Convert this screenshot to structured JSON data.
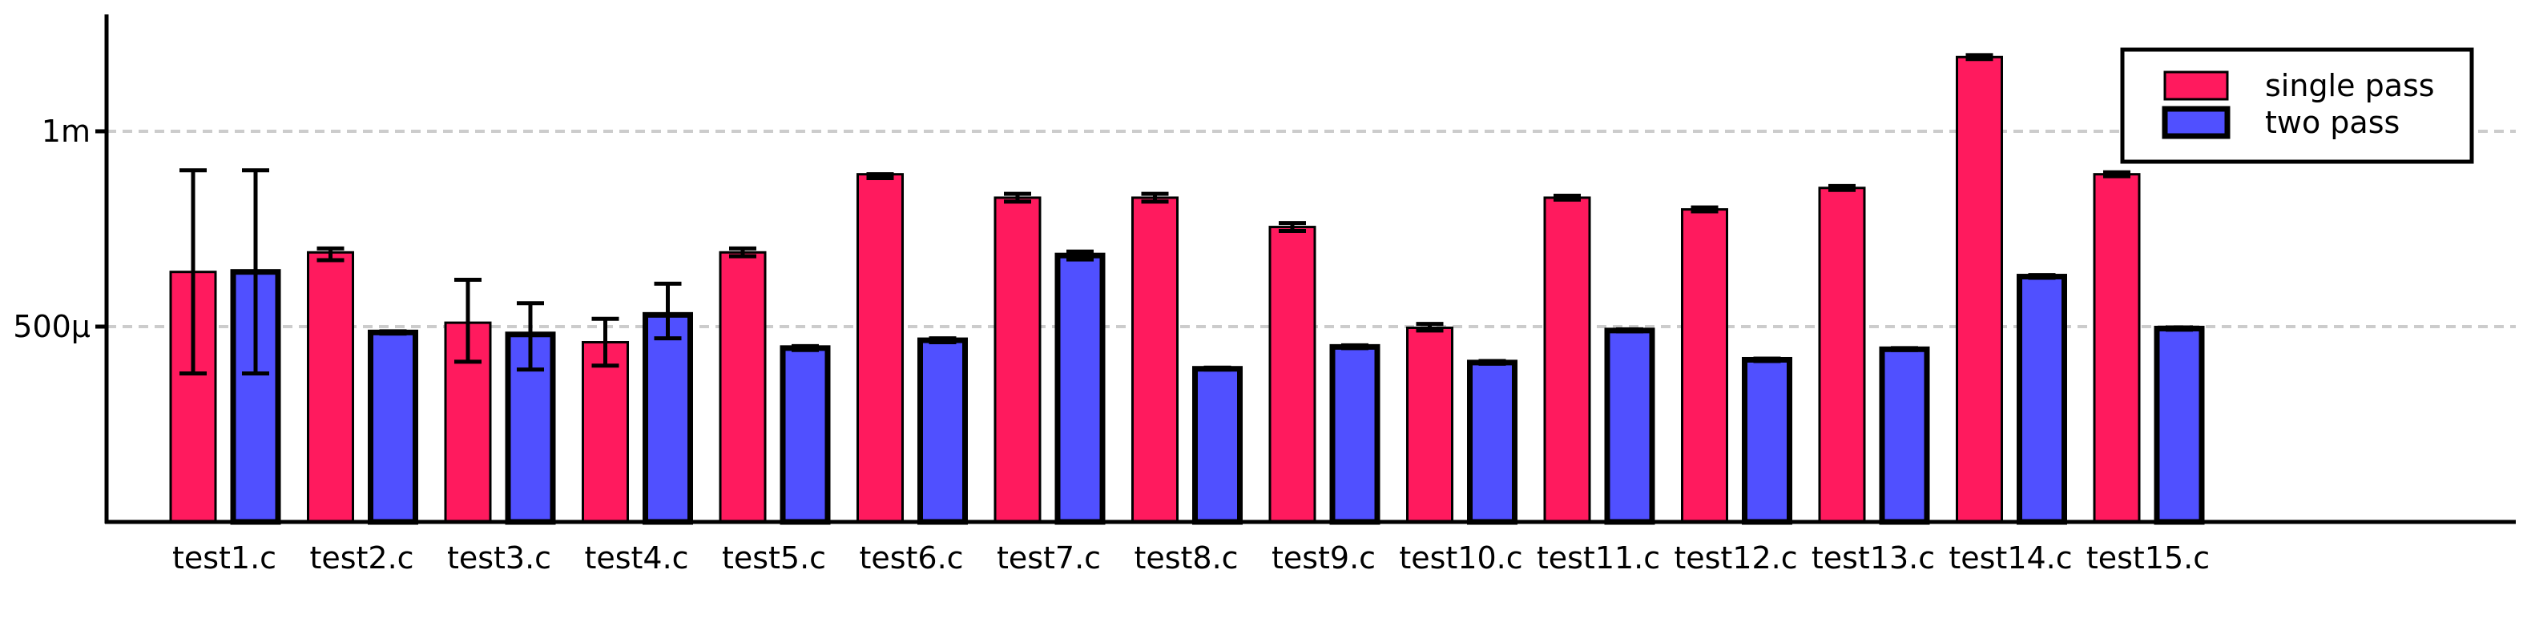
{
  "chart_data": {
    "type": "bar",
    "title": "",
    "xlabel": "",
    "ylabel": "",
    "categories": [
      "test1.c",
      "test2.c",
      "test3.c",
      "test4.c",
      "test5.c",
      "test6.c",
      "test7.c",
      "test8.c",
      "test9.c",
      "test10.c",
      "test11.c",
      "test12.c",
      "test13.c",
      "test14.c",
      "test15.c"
    ],
    "series": [
      {
        "name": "single pass",
        "color": "#ff1a5e",
        "values": [
          0.00064,
          0.00069,
          0.00051,
          0.00046,
          0.00069,
          0.00089,
          0.00083,
          0.00083,
          0.000755,
          0.000497,
          0.00083,
          0.0008,
          0.000855,
          0.00119,
          0.00089
        ],
        "err_low": [
          0.00038,
          0.00067,
          0.00041,
          0.0004,
          0.00068,
          0.00088,
          0.00082,
          0.00082,
          0.000745,
          0.00049,
          0.000825,
          0.000795,
          0.00085,
          0.001185,
          0.000885
        ],
        "err_high": [
          0.0009,
          0.0007,
          0.00062,
          0.00052,
          0.0007,
          0.00089,
          0.00084,
          0.00084,
          0.000765,
          0.000507,
          0.000835,
          0.000805,
          0.00086,
          0.001195,
          0.000895
        ]
      },
      {
        "name": "two pass",
        "color": "#5050ff",
        "values": [
          0.00064,
          0.000485,
          0.00048,
          0.00053,
          0.000445,
          0.000465,
          0.000682,
          0.000392,
          0.000448,
          0.000408,
          0.00049,
          0.000415,
          0.000442,
          0.000628,
          0.000495
        ],
        "err_low": [
          0.00038,
          0.000482,
          0.00039,
          0.00047,
          0.00044,
          0.00046,
          0.000672,
          0.00039,
          0.000445,
          0.000405,
          0.000488,
          0.000412,
          0.00044,
          0.000625,
          0.000492
        ],
        "err_high": [
          0.0009,
          0.000488,
          0.00056,
          0.00061,
          0.00045,
          0.00047,
          0.000692,
          0.000395,
          0.000452,
          0.000412,
          0.000493,
          0.000418,
          0.000445,
          0.000632,
          0.000498
        ]
      }
    ],
    "yticks": [
      0.0005,
      0.001
    ],
    "ytick_labels": [
      "500µ",
      "1m"
    ],
    "ylim": [
      0,
      0.0013
    ],
    "grid": "horizontal dashed at y ticks",
    "legend_position": "top-right"
  }
}
